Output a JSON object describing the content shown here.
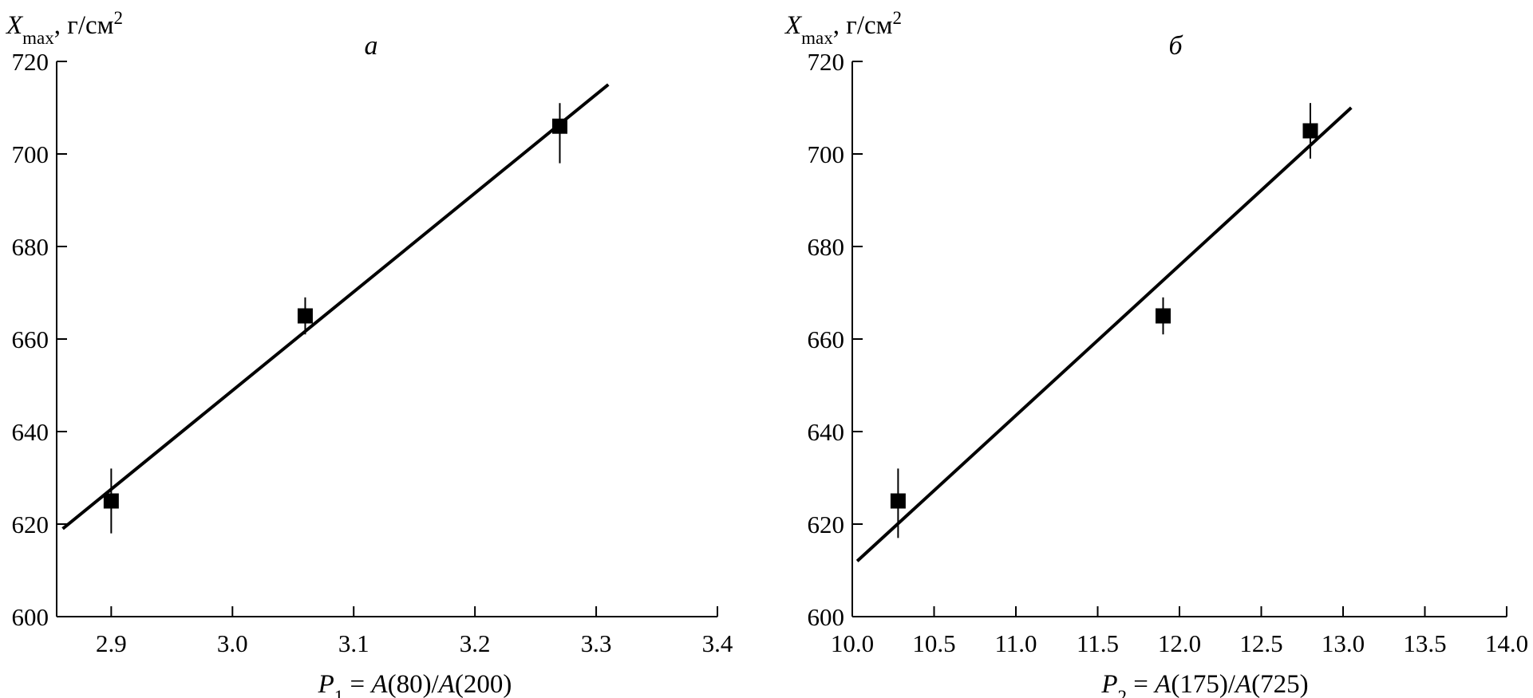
{
  "colors": {
    "ink": "#000000",
    "background": "#ffffff"
  },
  "chart_data": [
    {
      "type": "scatter",
      "title": "а",
      "ylabel": {
        "var": "X",
        "sub": "max",
        "unit": ", г/см",
        "sup": "2"
      },
      "xlabel": {
        "var": "P",
        "sub": "1",
        "rest_a": " = ",
        "A1": "A",
        "arg1": "(80)/",
        "A2": "A",
        "arg2": "(200)"
      },
      "xlim": [
        2.855,
        3.4
      ],
      "ylim": [
        600,
        720
      ],
      "xticks": [
        "2.9",
        "3.0",
        "3.1",
        "3.2",
        "3.3",
        "3.4"
      ],
      "yticks": [
        "600",
        "620",
        "640",
        "660",
        "680",
        "700",
        "720"
      ],
      "points": [
        {
          "x": 2.9,
          "y": 625,
          "err_low": 618,
          "err_high": 632
        },
        {
          "x": 3.06,
          "y": 665,
          "err_low": 661,
          "err_high": 669
        },
        {
          "x": 3.27,
          "y": 706,
          "err_low": 698,
          "err_high": 711
        }
      ],
      "fit_line": [
        [
          2.86,
          619
        ],
        [
          3.31,
          715
        ]
      ],
      "grid": false,
      "marker": "filled-square"
    },
    {
      "type": "scatter",
      "title": "б",
      "ylabel": {
        "var": "X",
        "sub": "max",
        "unit": ", г/см",
        "sup": "2"
      },
      "xlabel": {
        "var": "P",
        "sub": "2",
        "rest_a": " = ",
        "A1": "A",
        "arg1": "(175)/",
        "A2": "A",
        "arg2": "(725)"
      },
      "xlim": [
        10.0,
        14.0
      ],
      "ylim": [
        600,
        720
      ],
      "xticks": [
        "10.0",
        "10.5",
        "11.0",
        "11.5",
        "12.0",
        "12.5",
        "13.0",
        "13.5",
        "14.0"
      ],
      "yticks": [
        "600",
        "620",
        "640",
        "660",
        "680",
        "700",
        "720"
      ],
      "points": [
        {
          "x": 10.28,
          "y": 625,
          "err_low": 617,
          "err_high": 632
        },
        {
          "x": 11.9,
          "y": 665,
          "err_low": 661,
          "err_high": 669
        },
        {
          "x": 12.8,
          "y": 705,
          "err_low": 699,
          "err_high": 711
        }
      ],
      "fit_line": [
        [
          10.03,
          612
        ],
        [
          13.05,
          710
        ]
      ],
      "grid": false,
      "marker": "filled-square"
    }
  ]
}
